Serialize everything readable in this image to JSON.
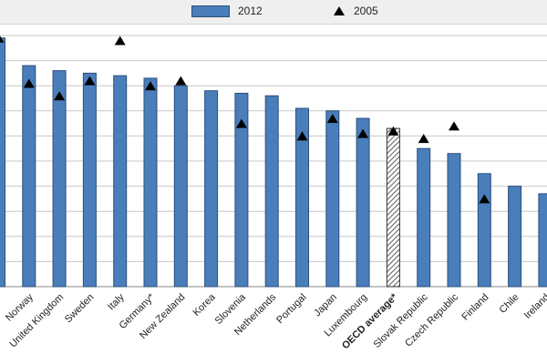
{
  "legend": {
    "series1": "2012",
    "series2": "2005"
  },
  "colors": {
    "bar": "#4a7ebb",
    "bar_stroke": "#2c4f7a",
    "marker": "#000000",
    "grid": "#c8c8c8"
  },
  "chart_data": {
    "type": "bar",
    "title": "",
    "xlabel": "",
    "ylabel": "",
    "ylim": [
      0,
      100
    ],
    "highlight": "OECD average*",
    "categories": [
      "",
      "Norway",
      "United Kingdom",
      "Sweden",
      "Italy",
      "Germany*",
      "New Zealand",
      "Korea",
      "Slovenia",
      "Netherlands",
      "Portugal",
      "Japan",
      "Luxembourg",
      "OECD average*",
      "Slovak Republic",
      "Czech Republic",
      "Finland",
      "Chile",
      "Ireland"
    ],
    "series": [
      {
        "name": "2012",
        "type": "bar",
        "values": [
          99,
          88,
          86,
          85,
          84,
          83,
          80,
          78,
          77,
          76,
          71,
          70,
          67,
          63,
          55,
          53,
          45,
          40,
          37
        ]
      },
      {
        "name": "2005",
        "type": "marker",
        "values": [
          99,
          81,
          76,
          82,
          98,
          80,
          82,
          null,
          65,
          null,
          60,
          67,
          61,
          62,
          59,
          64,
          35,
          null,
          null
        ]
      }
    ]
  }
}
